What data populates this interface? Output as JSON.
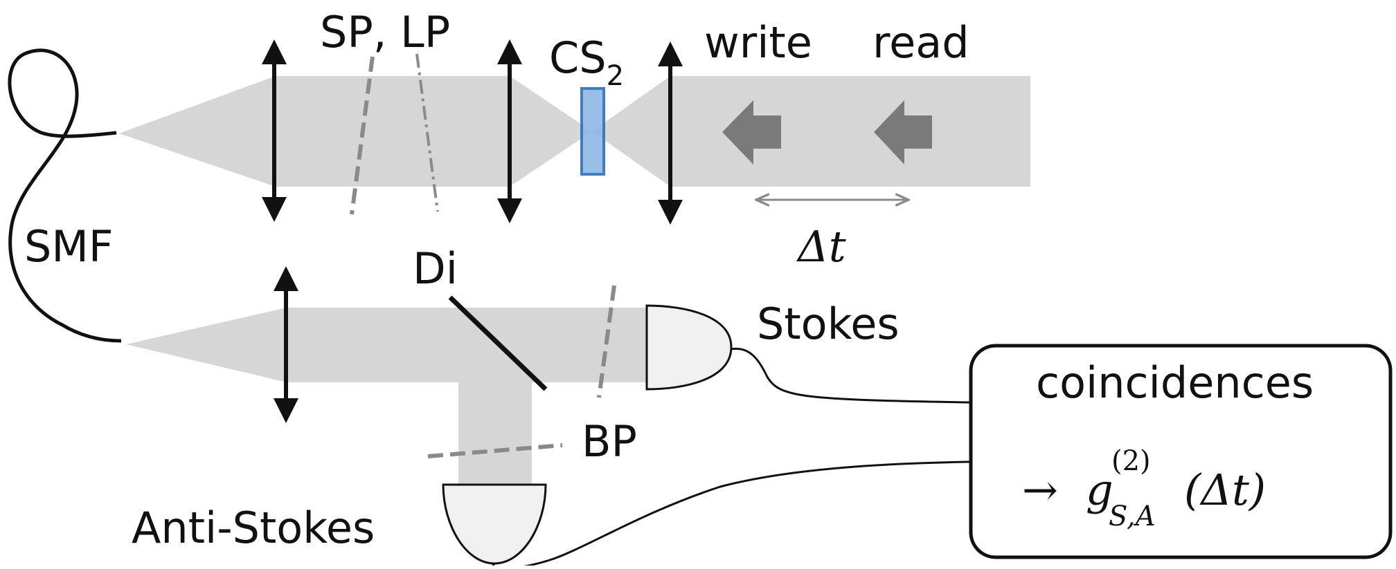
{
  "labels": {
    "sp_lp": "SP, LP",
    "cs2_main": "CS",
    "cs2_sub": "2",
    "write": "write",
    "read": "read",
    "delta_t": "Δt",
    "smf": "SMF",
    "di": "Di",
    "stokes": "Stokes",
    "bp": "BP",
    "anti_stokes": "Anti-Stokes",
    "coincidences": "coincidences"
  },
  "formula": {
    "arrow": "→",
    "g": "g",
    "sup": "(2)",
    "sub": "S,A",
    "arg": "(Δt)"
  },
  "colors": {
    "beam": "#d6d6d6",
    "crystal_fill": "#8fb9e6",
    "crystal_stroke": "#2e6fb5",
    "pulse_arrow": "#7a7a7a",
    "dashed": "#8a8a8a",
    "detector_fill": "#f0f0f0",
    "ink": "#111111"
  }
}
